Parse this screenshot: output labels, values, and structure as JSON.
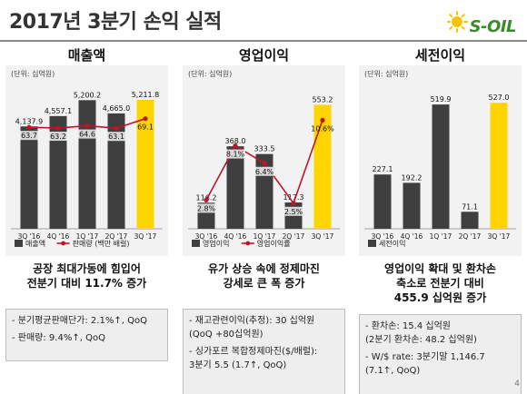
{
  "title": "2017년 3분기 손익 실적",
  "logo": {
    "text": "S-OIL",
    "sun_color": "#f5c400",
    "text_color": "#3d8a2d"
  },
  "page_number": "4",
  "colors": {
    "bar_dark": "#3f3f3f",
    "bar_highlight": "#ffd400",
    "line": "#c0142a",
    "panel_bg": "#f2f2f2"
  },
  "panels": [
    {
      "header": "매출액",
      "unit": "(단위: 십억원)",
      "legend": [
        "매출액",
        "판매량 (백만 배럴)"
      ],
      "summary": [
        "공장 최대가동에 힘입어",
        "전분기 대비 11.7% 증가"
      ],
      "notes": [
        "- 분기평균판매단가: 2.1%↑, QoQ",
        "- 판매량: 9.4%↑, QoQ"
      ]
    },
    {
      "header": "영업이익",
      "unit": "(단위: 십억원)",
      "legend": [
        "영업이익",
        "영업이익률"
      ],
      "summary": [
        "유가 상승 속에 정제마진",
        "강세로 큰 폭 증가"
      ],
      "notes": [
        "- 재고관련이익(추정): 30 십억원",
        "(QoQ +80십억원)",
        "- 싱가포르 복합정제마진($/배럴):",
        "3분기 5.5 (1.7↑, QoQ)"
      ]
    },
    {
      "header": "세전이익",
      "unit": "(단위: 십억원)",
      "legend": [
        "세전이익"
      ],
      "summary": [
        "영업이익 확대 및 환차손",
        "축소로 전분기 대비",
        "455.9 십억원 증가"
      ],
      "notes": [
        "- 환차손: 15.4 십억원",
        "(2분기 환차손: 48.2 십억원)",
        "- W/$ rate: 3분기말 1,146.7",
        "(7.1↑, QoQ)"
      ]
    }
  ],
  "chart_data": [
    {
      "type": "bar",
      "categories": [
        "3Q '16",
        "4Q '16",
        "1Q '17",
        "2Q '17",
        "3Q '17"
      ],
      "series": [
        {
          "name": "매출액",
          "values": [
            4137.9,
            4557.1,
            5200.2,
            4665.0,
            5211.8
          ],
          "labels": [
            "4,137.9",
            "4,557.1",
            "5,200.2",
            "4,665.0",
            "5,211.8"
          ]
        },
        {
          "name": "판매량 (백만 배럴)",
          "type": "line",
          "values": [
            63.7,
            63.2,
            64.6,
            63.1,
            69.1
          ],
          "labels": [
            "63.7",
            "63.2",
            "64.6",
            "63.1",
            "69.1"
          ]
        }
      ],
      "ylim": [
        0,
        5800
      ],
      "line_ylim": [
        0,
        90
      ]
    },
    {
      "type": "bar",
      "categories": [
        "3Q '16",
        "4Q '16",
        "1Q '17",
        "2Q '17",
        "3Q '17"
      ],
      "series": [
        {
          "name": "영업이익",
          "values": [
            116.2,
            368.0,
            333.5,
            117.3,
            553.2
          ],
          "labels": [
            "116.2",
            "368.0",
            "333.5",
            "117.3",
            "553.2"
          ]
        },
        {
          "name": "영업이익률",
          "type": "line",
          "values": [
            2.8,
            8.1,
            6.4,
            2.5,
            10.6
          ],
          "labels": [
            "2.8%",
            "8.1%",
            "6.4%",
            "2.5%",
            "10.6%"
          ]
        }
      ],
      "ylim": [
        0,
        640
      ],
      "line_ylim": [
        0,
        14
      ]
    },
    {
      "type": "bar",
      "categories": [
        "3Q '16",
        "4Q '16",
        "1Q '17",
        "2Q '17",
        "3Q '17"
      ],
      "series": [
        {
          "name": "세전이익",
          "values": [
            227.1,
            192.2,
            519.9,
            71.1,
            527.0
          ],
          "labels": [
            "227.1",
            "192.2",
            "519.9",
            "71.1",
            "527.0"
          ]
        }
      ],
      "ylim": [
        0,
        600
      ]
    }
  ]
}
